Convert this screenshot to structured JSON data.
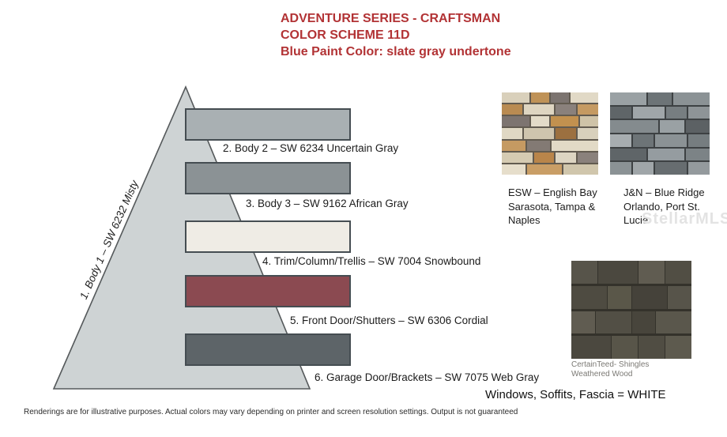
{
  "title": {
    "line1": "ADVENTURE SERIES - CRAFTSMAN",
    "line2": "COLOR SCHEME 11D",
    "line3": "Blue Paint Color: slate gray undertone",
    "color": "#b23335"
  },
  "pyramid": {
    "side_label": "1. Body 1 – SW 6232 Misty",
    "triangle_fill": "#ced3d4",
    "triangle_stroke": "#55595b",
    "bars": [
      {
        "label": "2. Body 2 – SW 6234 Uncertain Gray",
        "color": "#a9b0b3"
      },
      {
        "label": "3. Body 3 – SW 9162 African Gray",
        "color": "#8b9295"
      },
      {
        "label": "4. Trim/Column/Trellis – SW 7004 Snowbound",
        "color": "#efece5"
      },
      {
        "label": "5. Front Door/Shutters – SW 6306 Cordial",
        "color": "#8b4a51"
      },
      {
        "label": "6. Garage Door/Brackets – SW 7075 Web Gray",
        "color": "#5d6468"
      }
    ]
  },
  "stones": [
    {
      "caption": "ESW – English Bay\nSarasota, Tampa &\nNaples"
    },
    {
      "caption": "J&N  –  Blue Ridge\nOrlando, Port St. Lucie"
    }
  ],
  "shingles_caption": "CertainTeed- Shingles\nWeathered Wood",
  "windows_note": "Windows, Soffits, Fascia = WHITE",
  "watermark": "StellarMLS",
  "disclaimer": "Renderings are for illustrative purposes. Actual colors may vary depending on printer and screen resolution settings. Output is not guaranteed",
  "textures": {
    "esw": {
      "mortar": "#625b50",
      "colGap": 2,
      "rowGap": 2,
      "rows": [
        [
          [
            3,
            "#d9d0bb"
          ],
          [
            2,
            "#bf9257"
          ],
          [
            2,
            "#7c7470"
          ],
          [
            3,
            "#e1d9c6"
          ]
        ],
        [
          [
            2,
            "#b98b52"
          ],
          [
            3,
            "#ded5c1"
          ],
          [
            2,
            "#8a817c"
          ],
          [
            2,
            "#c59a62"
          ]
        ],
        [
          [
            3,
            "#7d7470"
          ],
          [
            2,
            "#e3dbc8"
          ],
          [
            3,
            "#c2914f"
          ],
          [
            2,
            "#cfc3a8"
          ]
        ],
        [
          [
            2,
            "#e0d8c4"
          ],
          [
            3,
            "#cfc5ae"
          ],
          [
            2,
            "#9c7040"
          ],
          [
            2,
            "#d8d0bc"
          ]
        ],
        [
          [
            2,
            "#c59a62"
          ],
          [
            2,
            "#837a74"
          ],
          [
            4,
            "#e2dac6"
          ]
        ],
        [
          [
            3,
            "#d5cbb2"
          ],
          [
            2,
            "#b9854a"
          ],
          [
            2,
            "#ddd5c2"
          ],
          [
            2,
            "#8a817c"
          ]
        ],
        [
          [
            2,
            "#e6decb"
          ],
          [
            3,
            "#c99e66"
          ],
          [
            3,
            "#d0c6ac"
          ]
        ]
      ]
    },
    "jn": {
      "mortar": "#3d4143",
      "colGap": 2,
      "rowGap": 2,
      "rows": [
        [
          [
            3,
            "#9aa1a4"
          ],
          [
            2,
            "#6d7477"
          ],
          [
            3,
            "#8b9295"
          ]
        ],
        [
          [
            2,
            "#5f6568"
          ],
          [
            3,
            "#a0a6a9"
          ],
          [
            2,
            "#777e81"
          ],
          [
            2,
            "#8e9497"
          ]
        ],
        [
          [
            4,
            "#848b8e"
          ],
          [
            2,
            "#9aa1a4"
          ],
          [
            2,
            "#5c6164"
          ]
        ],
        [
          [
            2,
            "#a7adb0"
          ],
          [
            2,
            "#6d7477"
          ],
          [
            3,
            "#8b9295"
          ],
          [
            2,
            "#767d80"
          ]
        ],
        [
          [
            3,
            "#5f6568"
          ],
          [
            3,
            "#959ca0"
          ],
          [
            2,
            "#7c8386"
          ]
        ],
        [
          [
            2,
            "#8b9295"
          ],
          [
            2,
            "#a0a6a9"
          ],
          [
            3,
            "#676d70"
          ],
          [
            2,
            "#949a9d"
          ]
        ]
      ]
    },
    "shingles": {
      "mortar": "#34322b",
      "colGap": 1,
      "rowGap": 3,
      "rows": [
        [
          [
            2,
            "#57544a"
          ],
          [
            3,
            "#4b483f"
          ],
          [
            2,
            "#605c51"
          ],
          [
            2,
            "#514e44"
          ]
        ],
        [
          [
            3,
            "#4e4b41"
          ],
          [
            2,
            "#5a5749"
          ],
          [
            3,
            "#45423a"
          ],
          [
            2,
            "#57544a"
          ]
        ],
        [
          [
            2,
            "#605c51"
          ],
          [
            3,
            "#524f45"
          ],
          [
            2,
            "#48453c"
          ],
          [
            3,
            "#5a574c"
          ]
        ],
        [
          [
            3,
            "#4b483f"
          ],
          [
            2,
            "#585549"
          ],
          [
            2,
            "#504d43"
          ],
          [
            2,
            "#5d5a4e"
          ]
        ]
      ]
    }
  }
}
